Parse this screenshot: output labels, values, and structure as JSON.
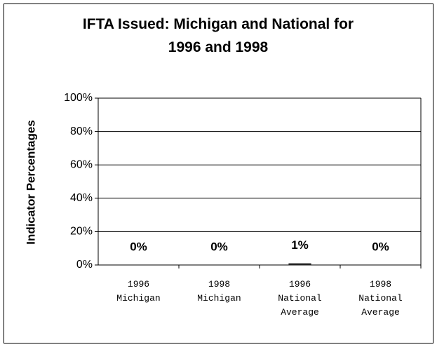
{
  "chart_data": {
    "type": "bar",
    "title": "IFTA Issued: Michigan and National for 1996 and 1998",
    "y_label": "Indicator Percentages",
    "categories": [
      "1996 Michigan",
      "1998 Michigan",
      "1996 National Average",
      "1998 National Average"
    ],
    "values": [
      0,
      0,
      1,
      0
    ],
    "value_labels": [
      "0%",
      "0%",
      "1%",
      "0%"
    ],
    "color": "#222222",
    "ylim": [
      0,
      100
    ],
    "yticks": [
      {
        "value": 0,
        "label": "0%"
      },
      {
        "value": 20,
        "label": "20%"
      },
      {
        "value": 40,
        "label": "40%"
      },
      {
        "value": 60,
        "label": "60%"
      },
      {
        "value": 80,
        "label": "80%"
      },
      {
        "value": 100,
        "label": "100%"
      }
    ],
    "grid": true
  }
}
